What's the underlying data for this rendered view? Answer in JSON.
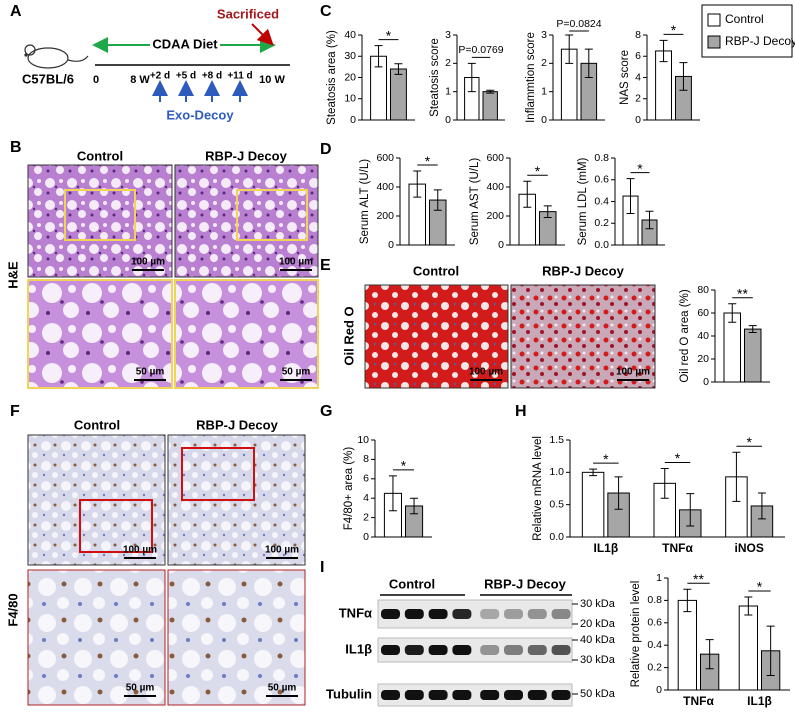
{
  "panel_labels": [
    "A",
    "B",
    "C",
    "D",
    "E",
    "F",
    "G",
    "H",
    "I"
  ],
  "a": {
    "strain": "C57BL/6",
    "diet": "CDAA Diet",
    "endpoint": "Sacrificed",
    "timeline": [
      "0",
      "8 W",
      "+2 d",
      "+5 d",
      "+8 d",
      "+11 d",
      "10 W"
    ],
    "treatment": "Exo-Decoy"
  },
  "b": {
    "groups": [
      "Control",
      "RBP-J Decoy"
    ],
    "stain": "H&E",
    "scale_bars": [
      "100 µm",
      "100 µm",
      "50 µm",
      "50 µm"
    ]
  },
  "legend": [
    {
      "name": "Control",
      "color": "#ffffff"
    },
    {
      "name": "RBP-J Decoy",
      "color": "#a6a6a6"
    }
  ],
  "c": {
    "charts": [
      {
        "type": "bar",
        "ylabel": "Steatosis area (%)",
        "ylim": [
          0,
          40
        ],
        "yticks": [
          0,
          10,
          20,
          30,
          40
        ],
        "series": [
          {
            "values": [
              30
            ],
            "errors": [
              5
            ]
          },
          {
            "values": [
              24
            ],
            "errors": [
              2.5
            ]
          }
        ],
        "significance": [
          "*"
        ]
      },
      {
        "type": "bar",
        "ylabel": "Steatosis score",
        "ylim": [
          0,
          3
        ],
        "yticks": [
          0,
          1,
          2,
          3
        ],
        "series": [
          {
            "values": [
              1.5
            ],
            "errors": [
              0.5
            ]
          },
          {
            "values": [
              1.0
            ],
            "errors": [
              0.05
            ]
          }
        ],
        "significance": [
          "P=0.0769"
        ]
      },
      {
        "type": "bar",
        "ylabel": "Inflammtion score",
        "ylim": [
          0,
          3
        ],
        "yticks": [
          0,
          1,
          2,
          3
        ],
        "series": [
          {
            "values": [
              2.5
            ],
            "errors": [
              0.5
            ]
          },
          {
            "values": [
              2.0
            ],
            "errors": [
              0.5
            ]
          }
        ],
        "significance": [
          "P=0.0824"
        ]
      },
      {
        "type": "bar",
        "ylabel": "NAS score",
        "ylim": [
          0,
          8
        ],
        "yticks": [
          0,
          2,
          4,
          6,
          8
        ],
        "series": [
          {
            "values": [
              6.5
            ],
            "errors": [
              1.0
            ]
          },
          {
            "values": [
              4.1
            ],
            "errors": [
              1.3
            ]
          }
        ],
        "significance": [
          "*"
        ]
      }
    ]
  },
  "d": {
    "charts": [
      {
        "type": "bar",
        "ylabel": "Serum ALT (U/L)",
        "ylim": [
          0,
          600
        ],
        "yticks": [
          0,
          200,
          400,
          600
        ],
        "series": [
          {
            "values": [
              420
            ],
            "errors": [
              90
            ]
          },
          {
            "values": [
              310
            ],
            "errors": [
              70
            ]
          }
        ],
        "significance": [
          "*"
        ]
      },
      {
        "type": "bar",
        "ylabel": "Serum AST (U/L)",
        "ylim": [
          0,
          600
        ],
        "yticks": [
          0,
          200,
          400,
          600
        ],
        "series": [
          {
            "values": [
              350
            ],
            "errors": [
              90
            ]
          },
          {
            "values": [
              230
            ],
            "errors": [
              40
            ]
          }
        ],
        "significance": [
          "*"
        ]
      },
      {
        "type": "bar",
        "ylabel": "Serum LDL (mM)",
        "ylim": [
          0,
          0.8
        ],
        "yticks": [
          {
            "value": 0,
            "label": "0.0"
          },
          0.2,
          0.4,
          0.6,
          0.8
        ],
        "series": [
          {
            "values": [
              0.45
            ],
            "errors": [
              0.16
            ]
          },
          {
            "values": [
              0.23
            ],
            "errors": [
              0.08
            ]
          }
        ],
        "significance": [
          "*"
        ]
      }
    ]
  },
  "e": {
    "groups": [
      "Control",
      "RBP-J Decoy"
    ],
    "stain": "Oil Red O",
    "scale_bars": [
      "100 µm",
      "100 µm"
    ],
    "chart": {
      "type": "bar",
      "ylabel": "Oil red O area (%)",
      "ylim": [
        0,
        80
      ],
      "yticks": [
        0,
        20,
        40,
        60,
        80
      ],
      "series": [
        {
          "values": [
            60
          ],
          "errors": [
            8
          ]
        },
        {
          "values": [
            46
          ],
          "errors": [
            3
          ]
        }
      ],
      "significance": [
        "**"
      ]
    }
  },
  "f": {
    "groups": [
      "Control",
      "RBP-J Decoy"
    ],
    "stain": "F4/80",
    "scale_bars": [
      "100 µm",
      "100 µm",
      "50 µm",
      "50 µm"
    ]
  },
  "g": {
    "chart": {
      "type": "bar",
      "ylabel": "F4/80+ area (%)",
      "ylim": [
        0,
        10
      ],
      "yticks": [
        0,
        2,
        4,
        6,
        8,
        10
      ],
      "series": [
        {
          "values": [
            4.5
          ],
          "errors": [
            1.8
          ]
        },
        {
          "values": [
            3.2
          ],
          "errors": [
            0.8
          ]
        }
      ],
      "significance": [
        "*"
      ]
    }
  },
  "h": {
    "chart": {
      "type": "bar",
      "ylabel": "Relative mRNA level",
      "ylim": [
        0,
        1.5
      ],
      "yticks": [
        {
          "value": 0,
          "label": "0.0"
        },
        0.5,
        {
          "value": 1,
          "label": "1.0"
        },
        1.5
      ],
      "categories": [
        "IL1β",
        "TNFα",
        "iNOS"
      ],
      "series": [
        {
          "values": [
            1.0,
            0.83,
            0.93
          ],
          "errors": [
            0.05,
            0.23,
            0.38
          ]
        },
        {
          "values": [
            0.68,
            0.42,
            0.48
          ],
          "errors": [
            0.25,
            0.25,
            0.2
          ]
        }
      ],
      "significance": [
        "*",
        "*",
        "*"
      ]
    }
  },
  "i": {
    "groups": [
      "Control",
      "RBP-J Decoy"
    ],
    "proteins": [
      "TNFα",
      "IL1β",
      "Tubulin"
    ],
    "markers": [
      "30 kDa",
      "20 kDa",
      "40 kDa",
      "30 kDa",
      "50 kDa"
    ],
    "chart": {
      "type": "bar",
      "ylabel": "Relative protein level",
      "ylim": [
        0,
        1
      ],
      "yticks": [
        0,
        0.2,
        0.4,
        0.6,
        0.8,
        1
      ],
      "categories": [
        "TNFα",
        "IL1β"
      ],
      "series": [
        {
          "values": [
            0.8,
            0.75
          ],
          "errors": [
            0.1,
            0.08
          ]
        },
        {
          "values": [
            0.32,
            0.35
          ],
          "errors": [
            0.13,
            0.22
          ]
        }
      ],
      "significance": [
        "**",
        "*"
      ]
    }
  }
}
